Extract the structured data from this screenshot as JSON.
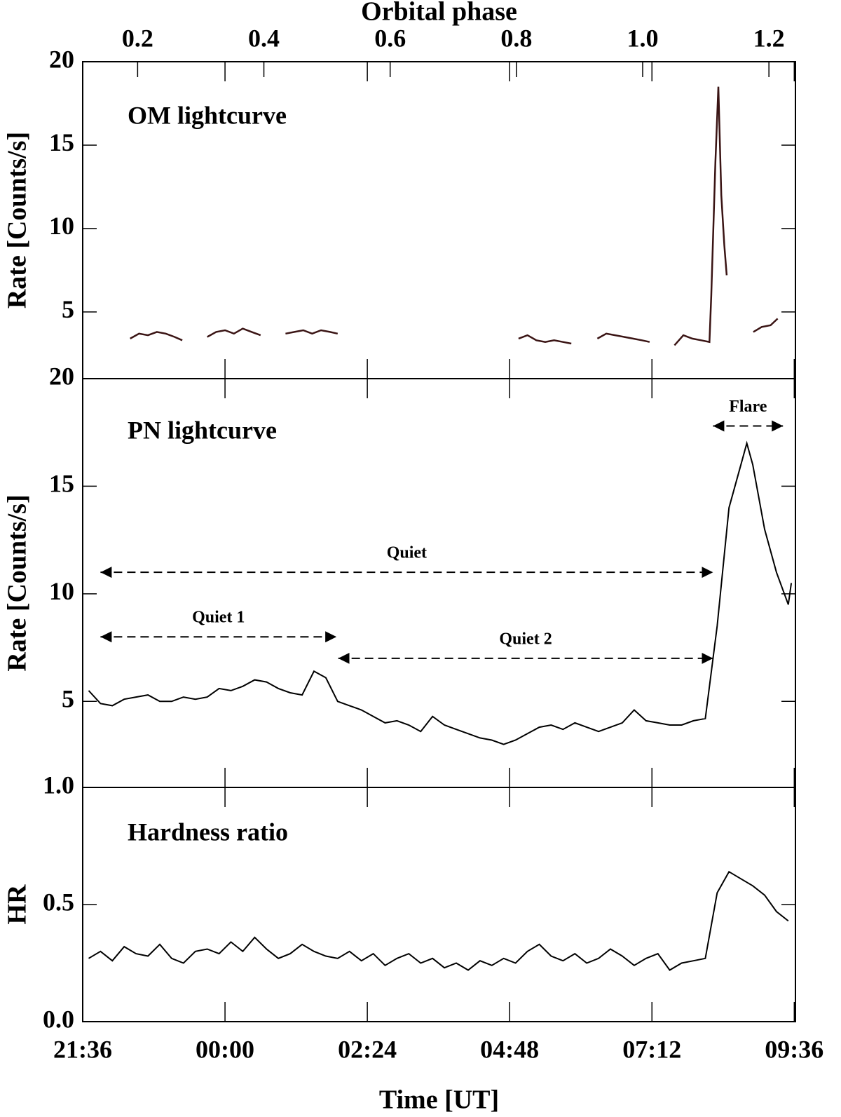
{
  "chart_data": [
    {
      "type": "line",
      "title": "OM lightcurve",
      "ylabel": "Rate [Counts/s]",
      "x2label": "Orbital phase",
      "xlim": [
        21.6,
        33.62
      ],
      "x2lim": [
        0.113,
        1.242
      ],
      "x2ticks": [
        0.2,
        0.4,
        0.6,
        0.8,
        {
          "value": 1.0,
          "label": "1.0"
        },
        1.2
      ],
      "ylim": [
        1,
        20
      ],
      "yticks": [
        5,
        10,
        15,
        20
      ],
      "color": "#3a1414",
      "x": [
        22.4,
        22.55,
        22.7,
        22.85,
        23.0,
        23.15,
        23.28,
        23.5,
        23.7,
        23.85,
        24.0,
        24.15,
        24.3,
        24.45,
        24.6,
        24.8,
        25.02,
        25.17,
        25.32,
        25.47,
        25.62,
        25.77,
        25.9,
        27.4,
        28.95,
        29.1,
        29.25,
        29.4,
        29.55,
        29.7,
        29.84,
        30.1,
        30.28,
        30.43,
        30.58,
        30.73,
        30.88,
        31.03,
        31.16,
        31.4,
        31.58,
        31.73,
        31.88,
        32.03,
        32.17,
        32.2,
        32.27,
        32.32,
        32.37,
        32.42,
        32.46,
        32.7,
        32.91,
        33.05,
        33.2,
        33.32
      ],
      "values": [
        3.4,
        3.7,
        3.6,
        3.8,
        3.7,
        3.5,
        3.3,
        null,
        3.5,
        3.8,
        3.9,
        3.7,
        4.0,
        3.8,
        3.6,
        null,
        3.7,
        3.8,
        3.9,
        3.7,
        3.9,
        3.8,
        3.7,
        null,
        3.4,
        3.6,
        3.3,
        3.2,
        3.3,
        3.2,
        3.1,
        null,
        3.4,
        3.7,
        3.6,
        3.5,
        3.4,
        3.3,
        3.2,
        null,
        3.0,
        3.6,
        3.4,
        3.3,
        3.2,
        6.0,
        14.0,
        18.5,
        12.0,
        9.0,
        7.2,
        null,
        3.8,
        4.1,
        4.2,
        4.6
      ]
    },
    {
      "type": "line",
      "title": "PN lightcurve",
      "ylabel": "Rate [Counts/s]",
      "xlim": [
        21.6,
        33.62
      ],
      "ylim": [
        1,
        20
      ],
      "yticks": [
        5,
        10,
        15,
        20
      ],
      "color": "#000000",
      "x": [
        21.7,
        21.9,
        22.1,
        22.3,
        22.5,
        22.7,
        22.9,
        23.1,
        23.3,
        23.5,
        23.7,
        23.9,
        24.1,
        24.3,
        24.5,
        24.7,
        24.9,
        25.1,
        25.3,
        25.5,
        25.7,
        25.9,
        26.1,
        26.3,
        26.5,
        26.7,
        26.9,
        27.1,
        27.3,
        27.5,
        27.7,
        27.9,
        28.1,
        28.3,
        28.5,
        28.7,
        28.9,
        29.1,
        29.3,
        29.5,
        29.7,
        29.9,
        30.1,
        30.3,
        30.5,
        30.7,
        30.9,
        31.1,
        31.3,
        31.5,
        31.7,
        31.9,
        32.1,
        32.3,
        32.5,
        32.7,
        32.8,
        32.9,
        33.1,
        33.3,
        33.5,
        33.55
      ],
      "values": [
        5.5,
        4.9,
        4.8,
        5.1,
        5.2,
        5.3,
        5.0,
        5.0,
        5.2,
        5.1,
        5.2,
        5.6,
        5.5,
        5.7,
        6.0,
        5.9,
        5.6,
        5.4,
        5.3,
        6.4,
        6.1,
        5.0,
        4.8,
        4.6,
        4.3,
        4.0,
        4.1,
        3.9,
        3.6,
        4.3,
        3.9,
        3.7,
        3.5,
        3.3,
        3.2,
        3.0,
        3.2,
        3.5,
        3.8,
        3.9,
        3.7,
        4.0,
        3.8,
        3.6,
        3.8,
        4.0,
        4.6,
        4.1,
        4.0,
        3.9,
        3.9,
        4.1,
        4.2,
        8.5,
        14.0,
        16.0,
        17.0,
        16.0,
        13.0,
        11.0,
        9.5,
        10.5
      ],
      "annotations": [
        {
          "text": "Quiet",
          "start": 21.9,
          "end": 32.23,
          "y": 11
        },
        {
          "text": "Quiet 1",
          "start": 21.9,
          "end": 25.88,
          "y": 8
        },
        {
          "text": "Quiet 2",
          "start": 25.91,
          "end": 32.23,
          "y": 7
        },
        {
          "text": "Flare",
          "start": 32.23,
          "end": 33.41,
          "y": 17.8
        }
      ]
    },
    {
      "type": "line",
      "title": "Hardness ratio",
      "ylabel": "HR",
      "xlabel": "Time [UT]",
      "xlim": [
        21.6,
        33.62
      ],
      "xticks": [
        {
          "value": 21.6,
          "label": "21:36"
        },
        {
          "value": 24,
          "label": "00:00"
        },
        {
          "value": 26.4,
          "label": "02:24"
        },
        {
          "value": 28.8,
          "label": "04:48"
        },
        {
          "value": 31.2,
          "label": "07:12"
        },
        {
          "value": 33.6,
          "label": "09:36"
        }
      ],
      "ylim": [
        0,
        1
      ],
      "yticks": [
        {
          "value": 0,
          "label": "0.0"
        },
        {
          "value": 0.5,
          "label": "0.5"
        },
        {
          "value": 1,
          "label": "1.0"
        }
      ],
      "color": "#000000",
      "x": [
        21.7,
        21.9,
        22.1,
        22.3,
        22.5,
        22.7,
        22.9,
        23.1,
        23.3,
        23.5,
        23.7,
        23.9,
        24.1,
        24.3,
        24.5,
        24.7,
        24.9,
        25.1,
        25.3,
        25.5,
        25.7,
        25.9,
        26.1,
        26.3,
        26.5,
        26.7,
        26.9,
        27.1,
        27.3,
        27.5,
        27.7,
        27.9,
        28.1,
        28.3,
        28.5,
        28.7,
        28.9,
        29.1,
        29.3,
        29.5,
        29.7,
        29.9,
        30.1,
        30.3,
        30.5,
        30.7,
        30.9,
        31.1,
        31.3,
        31.5,
        31.7,
        31.9,
        32.1,
        32.3,
        32.5,
        32.7,
        32.9,
        33.1,
        33.3,
        33.5
      ],
      "values": [
        0.27,
        0.3,
        0.26,
        0.32,
        0.29,
        0.28,
        0.33,
        0.27,
        0.25,
        0.3,
        0.31,
        0.29,
        0.34,
        0.3,
        0.36,
        0.31,
        0.27,
        0.29,
        0.33,
        0.3,
        0.28,
        0.27,
        0.3,
        0.26,
        0.29,
        0.24,
        0.27,
        0.29,
        0.25,
        0.27,
        0.23,
        0.25,
        0.22,
        0.26,
        0.24,
        0.27,
        0.25,
        0.3,
        0.33,
        0.28,
        0.26,
        0.29,
        0.25,
        0.27,
        0.31,
        0.28,
        0.24,
        0.27,
        0.29,
        0.22,
        0.25,
        0.26,
        0.27,
        0.55,
        0.64,
        0.61,
        0.58,
        0.54,
        0.47,
        0.43
      ]
    }
  ]
}
